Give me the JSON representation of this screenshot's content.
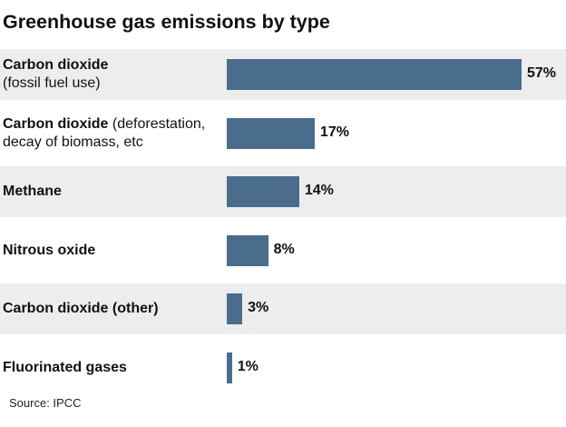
{
  "chart_data": {
    "type": "bar",
    "orientation": "horizontal",
    "title": "Greenhouse gas emissions by type",
    "categories": [
      {
        "bold": "Carbon dioxide",
        "extra": "(fossil fuel use)",
        "extra_newline": true
      },
      {
        "bold": "Carbon dioxide",
        "extra": "(deforestation, decay of biomass, etc",
        "extra_newline": false
      },
      {
        "bold": "Methane",
        "extra": "",
        "extra_newline": false
      },
      {
        "bold": "Nitrous oxide",
        "extra": "",
        "extra_newline": false
      },
      {
        "bold": "Carbon dioxide (other)",
        "extra": "",
        "extra_newline": false
      },
      {
        "bold": "Fluorinated gases",
        "extra": "",
        "extra_newline": false
      }
    ],
    "values": [
      57,
      17,
      14,
      8,
      3,
      1
    ],
    "value_labels": [
      "57%",
      "17%",
      "14%",
      "8%",
      "3%",
      "1%"
    ],
    "unit": "%",
    "bar_color": "#4a6d8e",
    "band_color": "#ededed",
    "xlim": [
      0,
      57
    ],
    "source": "Source: IPCC"
  }
}
